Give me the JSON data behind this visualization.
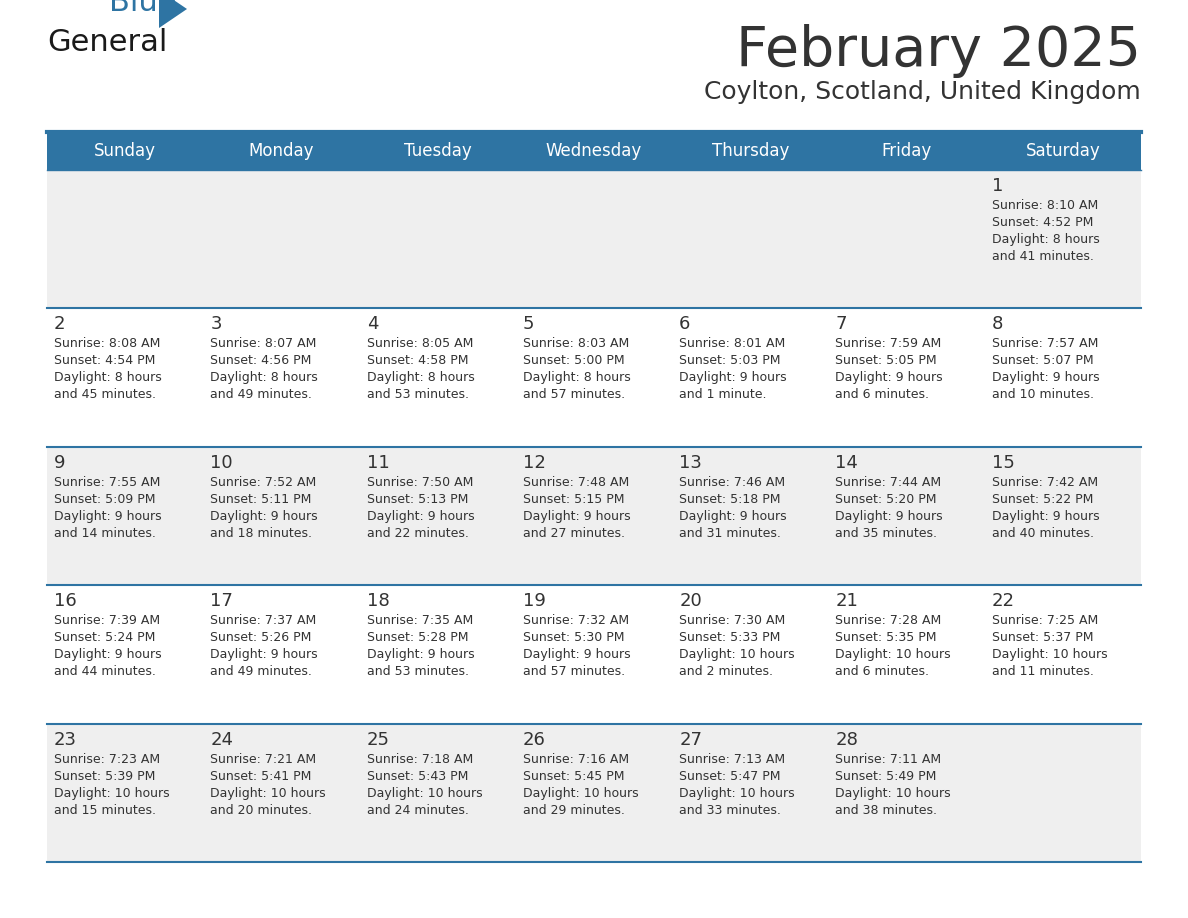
{
  "title": "February 2025",
  "subtitle": "Coylton, Scotland, United Kingdom",
  "header_bg": "#2E74A3",
  "header_text_color": "#FFFFFF",
  "cell_bg_odd": "#EFEFEF",
  "cell_bg_even": "#FFFFFF",
  "border_color": "#2E74A3",
  "text_color": "#333333",
  "days_of_week": [
    "Sunday",
    "Monday",
    "Tuesday",
    "Wednesday",
    "Thursday",
    "Friday",
    "Saturday"
  ],
  "calendar_data": [
    [
      {
        "day": null,
        "sunrise": null,
        "sunset": null,
        "daylight": null
      },
      {
        "day": null,
        "sunrise": null,
        "sunset": null,
        "daylight": null
      },
      {
        "day": null,
        "sunrise": null,
        "sunset": null,
        "daylight": null
      },
      {
        "day": null,
        "sunrise": null,
        "sunset": null,
        "daylight": null
      },
      {
        "day": null,
        "sunrise": null,
        "sunset": null,
        "daylight": null
      },
      {
        "day": null,
        "sunrise": null,
        "sunset": null,
        "daylight": null
      },
      {
        "day": 1,
        "sunrise": "8:10 AM",
        "sunset": "4:52 PM",
        "daylight": "8 hours\nand 41 minutes."
      }
    ],
    [
      {
        "day": 2,
        "sunrise": "8:08 AM",
        "sunset": "4:54 PM",
        "daylight": "8 hours\nand 45 minutes."
      },
      {
        "day": 3,
        "sunrise": "8:07 AM",
        "sunset": "4:56 PM",
        "daylight": "8 hours\nand 49 minutes."
      },
      {
        "day": 4,
        "sunrise": "8:05 AM",
        "sunset": "4:58 PM",
        "daylight": "8 hours\nand 53 minutes."
      },
      {
        "day": 5,
        "sunrise": "8:03 AM",
        "sunset": "5:00 PM",
        "daylight": "8 hours\nand 57 minutes."
      },
      {
        "day": 6,
        "sunrise": "8:01 AM",
        "sunset": "5:03 PM",
        "daylight": "9 hours\nand 1 minute."
      },
      {
        "day": 7,
        "sunrise": "7:59 AM",
        "sunset": "5:05 PM",
        "daylight": "9 hours\nand 6 minutes."
      },
      {
        "day": 8,
        "sunrise": "7:57 AM",
        "sunset": "5:07 PM",
        "daylight": "9 hours\nand 10 minutes."
      }
    ],
    [
      {
        "day": 9,
        "sunrise": "7:55 AM",
        "sunset": "5:09 PM",
        "daylight": "9 hours\nand 14 minutes."
      },
      {
        "day": 10,
        "sunrise": "7:52 AM",
        "sunset": "5:11 PM",
        "daylight": "9 hours\nand 18 minutes."
      },
      {
        "day": 11,
        "sunrise": "7:50 AM",
        "sunset": "5:13 PM",
        "daylight": "9 hours\nand 22 minutes."
      },
      {
        "day": 12,
        "sunrise": "7:48 AM",
        "sunset": "5:15 PM",
        "daylight": "9 hours\nand 27 minutes."
      },
      {
        "day": 13,
        "sunrise": "7:46 AM",
        "sunset": "5:18 PM",
        "daylight": "9 hours\nand 31 minutes."
      },
      {
        "day": 14,
        "sunrise": "7:44 AM",
        "sunset": "5:20 PM",
        "daylight": "9 hours\nand 35 minutes."
      },
      {
        "day": 15,
        "sunrise": "7:42 AM",
        "sunset": "5:22 PM",
        "daylight": "9 hours\nand 40 minutes."
      }
    ],
    [
      {
        "day": 16,
        "sunrise": "7:39 AM",
        "sunset": "5:24 PM",
        "daylight": "9 hours\nand 44 minutes."
      },
      {
        "day": 17,
        "sunrise": "7:37 AM",
        "sunset": "5:26 PM",
        "daylight": "9 hours\nand 49 minutes."
      },
      {
        "day": 18,
        "sunrise": "7:35 AM",
        "sunset": "5:28 PM",
        "daylight": "9 hours\nand 53 minutes."
      },
      {
        "day": 19,
        "sunrise": "7:32 AM",
        "sunset": "5:30 PM",
        "daylight": "9 hours\nand 57 minutes."
      },
      {
        "day": 20,
        "sunrise": "7:30 AM",
        "sunset": "5:33 PM",
        "daylight": "10 hours\nand 2 minutes."
      },
      {
        "day": 21,
        "sunrise": "7:28 AM",
        "sunset": "5:35 PM",
        "daylight": "10 hours\nand 6 minutes."
      },
      {
        "day": 22,
        "sunrise": "7:25 AM",
        "sunset": "5:37 PM",
        "daylight": "10 hours\nand 11 minutes."
      }
    ],
    [
      {
        "day": 23,
        "sunrise": "7:23 AM",
        "sunset": "5:39 PM",
        "daylight": "10 hours\nand 15 minutes."
      },
      {
        "day": 24,
        "sunrise": "7:21 AM",
        "sunset": "5:41 PM",
        "daylight": "10 hours\nand 20 minutes."
      },
      {
        "day": 25,
        "sunrise": "7:18 AM",
        "sunset": "5:43 PM",
        "daylight": "10 hours\nand 24 minutes."
      },
      {
        "day": 26,
        "sunrise": "7:16 AM",
        "sunset": "5:45 PM",
        "daylight": "10 hours\nand 29 minutes."
      },
      {
        "day": 27,
        "sunrise": "7:13 AM",
        "sunset": "5:47 PM",
        "daylight": "10 hours\nand 33 minutes."
      },
      {
        "day": 28,
        "sunrise": "7:11 AM",
        "sunset": "5:49 PM",
        "daylight": "10 hours\nand 38 minutes."
      },
      {
        "day": null,
        "sunrise": null,
        "sunset": null,
        "daylight": null
      }
    ]
  ],
  "logo_color_general": "#1a1a1a",
  "logo_color_blue": "#2E74A3",
  "logo_triangle_color": "#2E74A3",
  "fig_width": 11.88,
  "fig_height": 9.18,
  "dpi": 100
}
